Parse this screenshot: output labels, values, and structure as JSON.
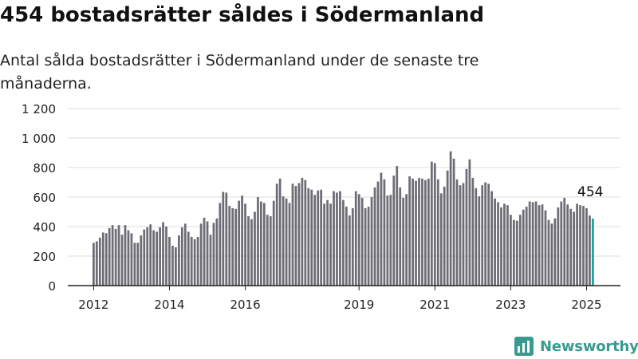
{
  "title": "454 bostadsrätter såldes i Södermanland",
  "subtitle": "Antal sålda bostadsrätter i Södermanland under de senaste tre månaderna.",
  "brand": {
    "name": "Newsworthy",
    "icon": "newsworthy-logo-icon"
  },
  "colors": {
    "bar": "#6e6d75",
    "highlight": "#17a3a3",
    "grid": "#dddddd",
    "axis": "#222222"
  },
  "chart_data": {
    "type": "bar",
    "title": "",
    "xlabel": "",
    "ylabel": "",
    "ylim": [
      0,
      1200
    ],
    "yticks": [
      0,
      200,
      400,
      600,
      800,
      1000,
      1200
    ],
    "ytick_labels": [
      "0",
      "200",
      "400",
      "600",
      "800",
      "1 000",
      "1 200"
    ],
    "xtick_labels": [
      "2012",
      "2014",
      "2016",
      "2019",
      "2021",
      "2023",
      "2025"
    ],
    "grid": true,
    "highlight_label": "454",
    "series": [
      {
        "values": [
          290,
          300,
          325,
          360,
          355,
          390,
          410,
          385,
          410,
          345,
          410,
          375,
          355,
          290,
          290,
          340,
          380,
          395,
          415,
          375,
          365,
          395,
          430,
          400,
          330,
          270,
          260,
          340,
          395,
          420,
          365,
          330,
          315,
          330,
          420,
          460,
          435,
          345,
          425,
          455,
          560,
          635,
          630,
          540,
          525,
          520,
          575,
          610,
          555,
          470,
          450,
          500,
          600,
          570,
          560,
          480,
          470,
          575,
          690,
          725,
          605,
          590,
          560,
          690,
          675,
          695,
          730,
          715,
          660,
          650,
          615,
          645,
          650,
          555,
          580,
          555,
          640,
          630,
          640,
          580,
          535,
          475,
          525,
          640,
          620,
          595,
          525,
          535,
          600,
          665,
          705,
          765,
          720,
          610,
          615,
          745,
          810,
          665,
          595,
          620,
          740,
          725,
          710,
          730,
          725,
          715,
          725,
          840,
          830,
          720,
          625,
          670,
          780,
          910,
          860,
          720,
          680,
          695,
          790,
          855,
          730,
          660,
          605,
          680,
          700,
          690,
          640,
          590,
          565,
          530,
          555,
          545,
          480,
          445,
          440,
          480,
          515,
          535,
          570,
          565,
          570,
          545,
          550,
          510,
          445,
          420,
          455,
          530,
          570,
          595,
          550,
          520,
          500,
          555,
          545,
          540,
          525,
          475,
          454
        ]
      }
    ]
  }
}
